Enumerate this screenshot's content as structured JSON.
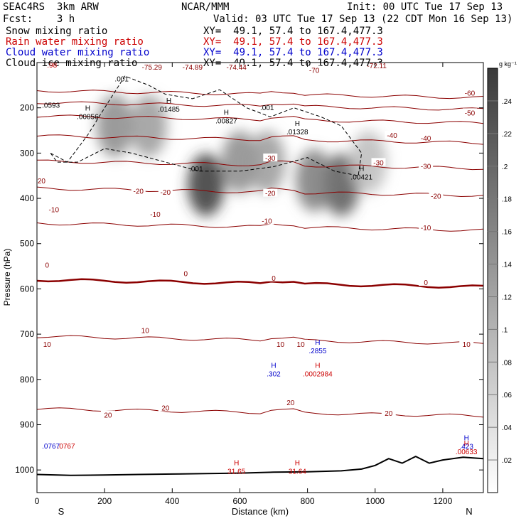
{
  "header": {
    "model": "SEAC4RS  3km ARW",
    "org": "NCAR/MMM",
    "init": "Init: 00 UTC Tue 17 Sep 13",
    "fcst": "Fcst:    3 h",
    "valid": "Valid: 03 UTC Tue 17 Sep 13 (22 CDT Mon 16 Sep 13)",
    "fields": [
      {
        "label": "Snow mixing ratio",
        "xy": "XY=  49.1, 57.4 to 167.4,477.3",
        "color": "#000000"
      },
      {
        "label": "Rain water mixing ratio",
        "xy": "XY=  49.1, 57.4 to 167.4,477.3",
        "color": "#cc0000"
      },
      {
        "label": "Cloud water mixing ratio",
        "xy": "XY=  49.1, 57.4 to 167.4,477.3",
        "color": "#0000cc"
      },
      {
        "label": "Cloud ice mixing ratio",
        "xy": "XY=  49.1, 57.4 to 167.4,477.3",
        "color": "#000000"
      }
    ]
  },
  "chart_data": {
    "type": "cross-section",
    "xlabel": "Distance (km)",
    "ylabel": "Pressure (hPa)",
    "xlim": [
      0,
      1320
    ],
    "ylim": [
      1050,
      100
    ],
    "x_ticks": [
      0,
      200,
      400,
      600,
      800,
      1000,
      1200
    ],
    "y_ticks": [
      1000,
      900,
      800,
      700,
      600,
      500,
      400,
      300,
      200
    ],
    "x_end_labels": {
      "left": "S",
      "right": "N"
    },
    "colorbar": {
      "unit": "g kg⁻¹",
      "ticks": [
        0.02,
        0.04,
        0.06,
        0.08,
        0.1,
        0.12,
        0.14,
        0.16,
        0.18,
        0.2,
        0.22,
        0.24
      ],
      "tick_labels": [
        ".02",
        ".04",
        ".06",
        ".08",
        ".1",
        ".12",
        ".14",
        ".16",
        ".18",
        ".2",
        ".22",
        ".24"
      ]
    },
    "temperature_contours_C": [
      {
        "value": -70,
        "p": 162
      },
      {
        "value": -60,
        "p": 188
      },
      {
        "value": -50,
        "p": 218
      },
      {
        "value": -40,
        "p": 262
      },
      {
        "value": -30,
        "p": 318
      },
      {
        "value": -20,
        "p": 378
      },
      {
        "value": -10,
        "p": 455
      },
      {
        "value": 0,
        "p": 580
      },
      {
        "value": 10,
        "p": 705
      },
      {
        "value": 20,
        "p": 865
      }
    ],
    "contour_labels": [
      {
        "text": "-75.29",
        "x": 340,
        "p": 111
      },
      {
        "text": "-74.89",
        "x": 460,
        "p": 111
      },
      {
        "text": "-74.44",
        "x": 590,
        "p": 111
      },
      {
        "text": "-72.11",
        "x": 1005,
        "p": 108
      },
      {
        "text": "-70",
        "x": 820,
        "p": 118
      },
      {
        "text": "-60",
        "x": 1280,
        "p": 168
      },
      {
        "text": "-50",
        "x": 1280,
        "p": 212
      },
      {
        "text": "-40",
        "x": 1050,
        "p": 262
      },
      {
        "text": "-40",
        "x": 1150,
        "p": 268
      },
      {
        "text": "-30",
        "x": 690,
        "p": 312
      },
      {
        "text": "-30",
        "x": 1010,
        "p": 322
      },
      {
        "text": "-30",
        "x": 1150,
        "p": 330
      },
      {
        "text": "-20",
        "x": 10,
        "p": 362
      },
      {
        "text": "-20",
        "x": 300,
        "p": 385
      },
      {
        "text": "-20",
        "x": 380,
        "p": 387
      },
      {
        "text": "-20",
        "x": 690,
        "p": 390
      },
      {
        "text": "-20",
        "x": 1180,
        "p": 396
      },
      {
        "text": "-10",
        "x": 50,
        "p": 426
      },
      {
        "text": "-10",
        "x": 350,
        "p": 436
      },
      {
        "text": "-10",
        "x": 680,
        "p": 451
      },
      {
        "text": "-10",
        "x": 1150,
        "p": 466
      },
      {
        "text": "0",
        "x": 30,
        "p": 548
      },
      {
        "text": "0",
        "x": 440,
        "p": 567
      },
      {
        "text": "0",
        "x": 700,
        "p": 577
      },
      {
        "text": "0",
        "x": 1150,
        "p": 587
      },
      {
        "text": "10",
        "x": 30,
        "p": 723
      },
      {
        "text": "10",
        "x": 320,
        "p": 693
      },
      {
        "text": "10",
        "x": 720,
        "p": 723
      },
      {
        "text": "10",
        "x": 780,
        "p": 723
      },
      {
        "text": "10",
        "x": 1270,
        "p": 723
      },
      {
        "text": "20",
        "x": 210,
        "p": 880
      },
      {
        "text": "20",
        "x": 380,
        "p": 864
      },
      {
        "text": "20",
        "x": 750,
        "p": 852
      },
      {
        "text": "20",
        "x": 1040,
        "p": 876
      }
    ],
    "extrema_labels": [
      {
        "marker": "H",
        "value": ".00856",
        "x": 150,
        "p": 212,
        "color": "#000000"
      },
      {
        "marker": "H",
        "value": ".01485",
        "x": 390,
        "p": 196,
        "color": "#000000"
      },
      {
        "marker": "H",
        "value": ".00827",
        "x": 560,
        "p": 222,
        "color": "#000000"
      },
      {
        "marker": "H",
        "value": ".01328",
        "x": 770,
        "p": 246,
        "color": "#000000"
      },
      {
        "marker": "H",
        "value": ".00421",
        "x": 960,
        "p": 346,
        "color": "#000000"
      },
      {
        "marker": "H",
        "value": ".302",
        "x": 700,
        "p": 781,
        "color": "#0000cc"
      },
      {
        "marker": "H",
        "value": ".2855",
        "x": 830,
        "p": 730,
        "color": "#0000cc"
      },
      {
        "marker": "H",
        "value": ".0002984",
        "x": 830,
        "p": 781,
        "color": "#cc0000"
      },
      {
        "marker": "H",
        "value": ".423",
        "x": 1270,
        "p": 941,
        "color": "#0000cc"
      },
      {
        "marker": "H",
        "value": ".00633",
        "x": 1270,
        "p": 953,
        "color": "#cc0000"
      },
      {
        "marker": "H",
        "value": "31.65",
        "x": 590,
        "p": 996,
        "color": "#cc0000"
      },
      {
        "marker": "H",
        "value": "31.64",
        "x": 770,
        "p": 996,
        "color": "#cc0000"
      }
    ],
    "plain_labels": [
      {
        "text": ".98",
        "x": 30,
        "p": 111,
        "color": "#cc0000"
      },
      {
        "text": ".001",
        "x": 230,
        "p": 142,
        "color": "#000000"
      },
      {
        "text": ".001",
        "x": 660,
        "p": 205,
        "color": "#000000"
      },
      {
        "text": ".001",
        "x": 450,
        "p": 340,
        "color": "#000000"
      },
      {
        "text": ".0593",
        "x": 15,
        "p": 200,
        "color": "#000000"
      },
      {
        "text": ".0767",
        "x": 15,
        "p": 953,
        "color": "#0000cc"
      },
      {
        "text": ".0767",
        "x": 60,
        "p": 953,
        "color": "#cc0000"
      }
    ],
    "snow_maxima": [
      {
        "x": 230,
        "p": 240,
        "intensity": 0.14
      },
      {
        "x": 330,
        "p": 240,
        "intensity": 0.12
      },
      {
        "x": 500,
        "p": 370,
        "intensity": 0.24
      },
      {
        "x": 600,
        "p": 320,
        "intensity": 0.14
      },
      {
        "x": 680,
        "p": 320,
        "intensity": 0.12
      },
      {
        "x": 900,
        "p": 370,
        "intensity": 0.2
      },
      {
        "x": 820,
        "p": 360,
        "intensity": 0.16
      },
      {
        "x": 980,
        "p": 320,
        "intensity": 0.08
      }
    ],
    "surface_pressure_hPa": [
      [
        0,
        1010
      ],
      [
        100,
        1012
      ],
      [
        200,
        1011
      ],
      [
        300,
        1010
      ],
      [
        400,
        1009
      ],
      [
        500,
        1008
      ],
      [
        600,
        1007
      ],
      [
        700,
        1005
      ],
      [
        800,
        1004
      ],
      [
        900,
        1002
      ],
      [
        960,
        998
      ],
      [
        1000,
        990
      ],
      [
        1040,
        975
      ],
      [
        1080,
        985
      ],
      [
        1120,
        970
      ],
      [
        1160,
        985
      ],
      [
        1200,
        978
      ],
      [
        1260,
        972
      ],
      [
        1320,
        975
      ]
    ]
  }
}
